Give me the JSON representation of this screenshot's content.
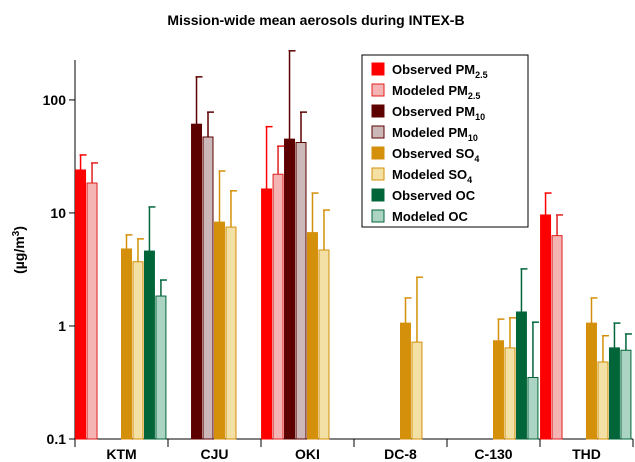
{
  "chart_data": {
    "type": "bar",
    "title": "Mission-wide mean aerosols during INTEX-B",
    "ylabel": {
      "text": "(µg/m",
      "sup": "3",
      "close": ")"
    },
    "log_y": true,
    "ylim": [
      0.1,
      300
    ],
    "yticks": [
      0.1,
      1,
      10,
      100
    ],
    "legend": "upper right",
    "categories": [
      "KTM",
      "CJU",
      "OKI",
      "DC-8",
      "C-130",
      "THD"
    ],
    "series": [
      {
        "name": "Observed PM",
        "sub": "2.5",
        "color": "#ff0000",
        "edgecolor": "#ff0000",
        "values": [
          24,
          null,
          16.3,
          null,
          null,
          9.6
        ],
        "upper": [
          32.6,
          null,
          58,
          null,
          null,
          15
        ]
      },
      {
        "name": "Modeled PM",
        "sub": "2.5",
        "color": "#f4b4b4",
        "edgecolor": "#e02020",
        "values": [
          18.4,
          null,
          22,
          null,
          null,
          6.3
        ],
        "upper": [
          27.7,
          null,
          39,
          null,
          null,
          9.6
        ]
      },
      {
        "name": "Observed PM",
        "sub": "10",
        "color": "#5c0000",
        "edgecolor": "#5c0000",
        "values": [
          null,
          61,
          45,
          null,
          null,
          null
        ],
        "upper": [
          null,
          160,
          272,
          null,
          null,
          null
        ]
      },
      {
        "name": "Modeled PM",
        "sub": "10",
        "color": "#ccb8b8",
        "edgecolor": "#5c0000",
        "values": [
          null,
          47,
          42,
          null,
          null,
          null
        ],
        "upper": [
          null,
          78,
          78,
          null,
          null,
          null
        ]
      },
      {
        "name": "Observed SO",
        "sub": "4",
        "color": "#d4900a",
        "edgecolor": "#d4900a",
        "values": [
          4.8,
          8.3,
          6.7,
          1.06,
          0.74,
          1.06
        ],
        "upper": [
          6.4,
          23.5,
          15,
          1.77,
          1.15,
          1.77
        ]
      },
      {
        "name": "Modeled SO",
        "sub": "4",
        "color": "#f2e0a4",
        "edgecolor": "#d4900a",
        "values": [
          3.7,
          7.5,
          4.7,
          0.72,
          0.64,
          0.48
        ],
        "upper": [
          5.9,
          15.7,
          10.6,
          2.7,
          1.18,
          0.82
        ]
      },
      {
        "name": "Observed OC",
        "sub": "",
        "color": "#00663a",
        "edgecolor": "#00663a",
        "values": [
          4.6,
          null,
          null,
          null,
          1.33,
          0.64
        ],
        "upper": [
          11.3,
          null,
          null,
          null,
          3.2,
          1.06
        ]
      },
      {
        "name": "Modeled OC",
        "sub": "",
        "color": "#acd4c4",
        "edgecolor": "#00663a",
        "values": [
          1.84,
          null,
          null,
          null,
          0.35,
          0.61
        ],
        "upper": [
          2.55,
          null,
          null,
          null,
          1.08,
          0.85
        ]
      }
    ]
  }
}
